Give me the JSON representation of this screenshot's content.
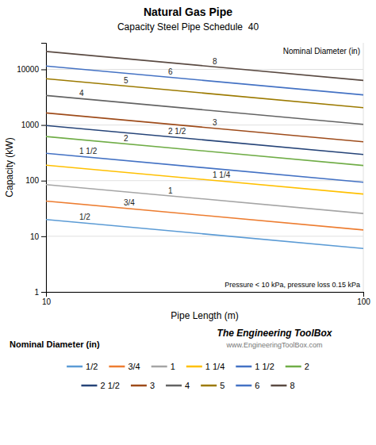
{
  "chart_data": {
    "type": "line",
    "title": "Natural Gas Pipe",
    "subtitle": "Capacity Steel Pipe Schedule  40",
    "xlabel": "Pipe Length (m)",
    "ylabel": "Capacity (kW)",
    "annotations": [
      "Nominal Diameter (in)",
      "Pressure < 10 kPa, pressure loss 0.15 kPa",
      "The Engineering ToolBox",
      "www.EngineeringToolBox.com",
      "Nominal Diameter (in)"
    ],
    "x": [
      10,
      100
    ],
    "series": [
      {
        "name": "1/2",
        "color": "#5b9bd5",
        "values": [
          20,
          6.0399
        ]
      },
      {
        "name": "3/4",
        "color": "#ed7d31",
        "values": [
          43,
          12.9858
        ]
      },
      {
        "name": "1",
        "color": "#a5a5a5",
        "values": [
          85,
          25.6696
        ]
      },
      {
        "name": "1 1/4",
        "color": "#ffc000",
        "values": [
          190,
          57.3791
        ]
      },
      {
        "name": "1 1/2",
        "color": "#4472c4",
        "values": [
          310,
          93.6185
        ]
      },
      {
        "name": "2",
        "color": "#70ad47",
        "values": [
          620,
          187.237
        ]
      },
      {
        "name": "2 1/2",
        "color": "#264478",
        "values": [
          980,
          295.955
        ]
      },
      {
        "name": "3",
        "color": "#9e4b1a",
        "values": [
          1650,
          498.292
        ]
      },
      {
        "name": "4",
        "color": "#636363",
        "values": [
          3400,
          1026.78
        ]
      },
      {
        "name": "5",
        "color": "#9c7a00",
        "values": [
          6800,
          2053.57
        ]
      },
      {
        "name": "6",
        "color": "#4472c4",
        "values": [
          11500,
          3472.94
        ]
      },
      {
        "name": "8",
        "color": "#5a4a42",
        "values": [
          21000,
          6341.9
        ]
      }
    ],
    "xlim": [
      10,
      100
    ],
    "ylim": [
      1,
      30000
    ],
    "xticks": [
      10,
      100
    ],
    "yticks": [
      1,
      10,
      100,
      1000,
      10000
    ],
    "log": true,
    "grid": true,
    "legend": "bottom"
  }
}
